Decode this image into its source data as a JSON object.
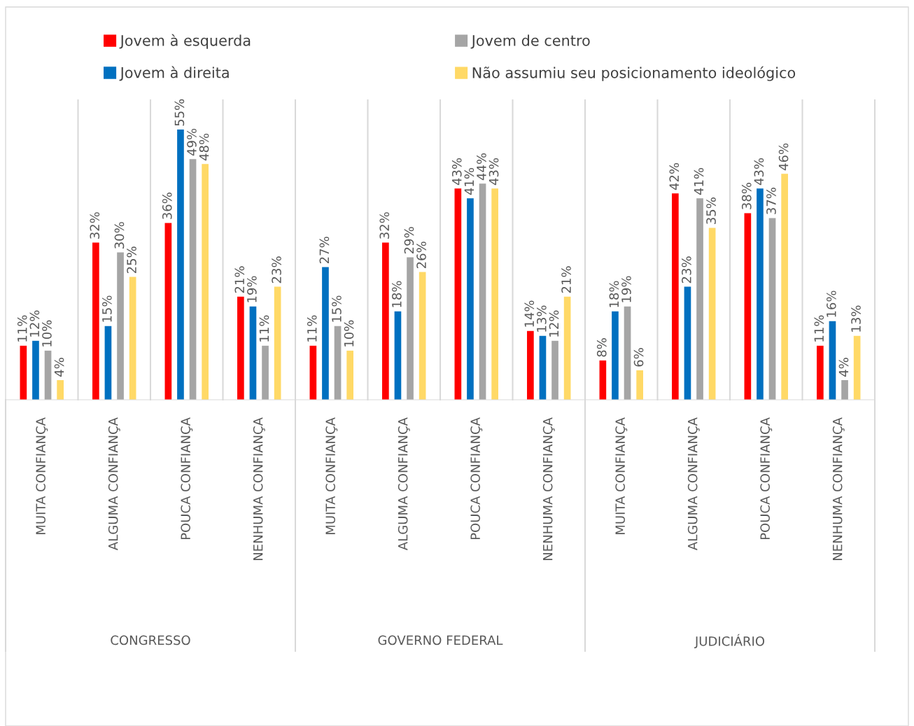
{
  "chart_data": {
    "type": "bar",
    "categories": [
      "MUITA CONFIANÇA",
      "ALGUMA CONFIANÇA",
      "POUCA CONFIANÇA",
      "NENHUMA CONFIANÇA",
      "MUITA CONFIANÇA",
      "ALGUMA CONFIANÇA",
      "POUCA CONFIANÇA",
      "NENHUMA CONFIANÇA",
      "MUITA CONFIANÇA",
      "ALGUMA CONFIANÇA",
      "POUCA CONFIANÇA",
      "NENHUMA CONFIANÇA"
    ],
    "series": [
      {
        "name": "Jovem à esquerda",
        "color": "#ff0000",
        "values": [
          11,
          32,
          36,
          21,
          11,
          32,
          43,
          14,
          8,
          42,
          38,
          11
        ],
        "value_labels": [
          "11%",
          "32%",
          "36%",
          "21%",
          "11%",
          "32%",
          "43%",
          "14%",
          "8%",
          "42%",
          "38%",
          "11%"
        ]
      },
      {
        "name": "Jovem à direita",
        "color": "#0070c0",
        "values": [
          12,
          15,
          55,
          19,
          27,
          18,
          41,
          13,
          18,
          23,
          43,
          16
        ],
        "value_labels": [
          "12%",
          "15%",
          "55%",
          "19%",
          "27%",
          "18%",
          "41%",
          "13%",
          "18%",
          "23%",
          "43%",
          "16%"
        ]
      },
      {
        "name": "Jovem de centro",
        "color": "#a5a5a5",
        "values": [
          10,
          30,
          49,
          11,
          15,
          29,
          44,
          12,
          19,
          41,
          37,
          4
        ],
        "value_labels": [
          "10%",
          "30%",
          "49%",
          "11%",
          "15%",
          "29%",
          "44%",
          "12%",
          "19%",
          "41%",
          "37%",
          "4%"
        ]
      },
      {
        "name": "Não assumiu seu posicionamento ideológico",
        "color": "#ffd966",
        "values": [
          4,
          25,
          48,
          23,
          10,
          26,
          43,
          21,
          6,
          35,
          46,
          13
        ],
        "value_labels": [
          "4%",
          "25%",
          "48%",
          "23%",
          "10%",
          "26%",
          "43%",
          "21%",
          "6%",
          "35%",
          "46%",
          "13%"
        ]
      }
    ],
    "annotations": [
      "CONGRESSO",
      "GOVERNO FEDERAL",
      "JUDICIÁRIO"
    ],
    "ylim": [
      0,
      61
    ],
    "tick_labels": "x",
    "grid": "x",
    "legend": "top"
  }
}
